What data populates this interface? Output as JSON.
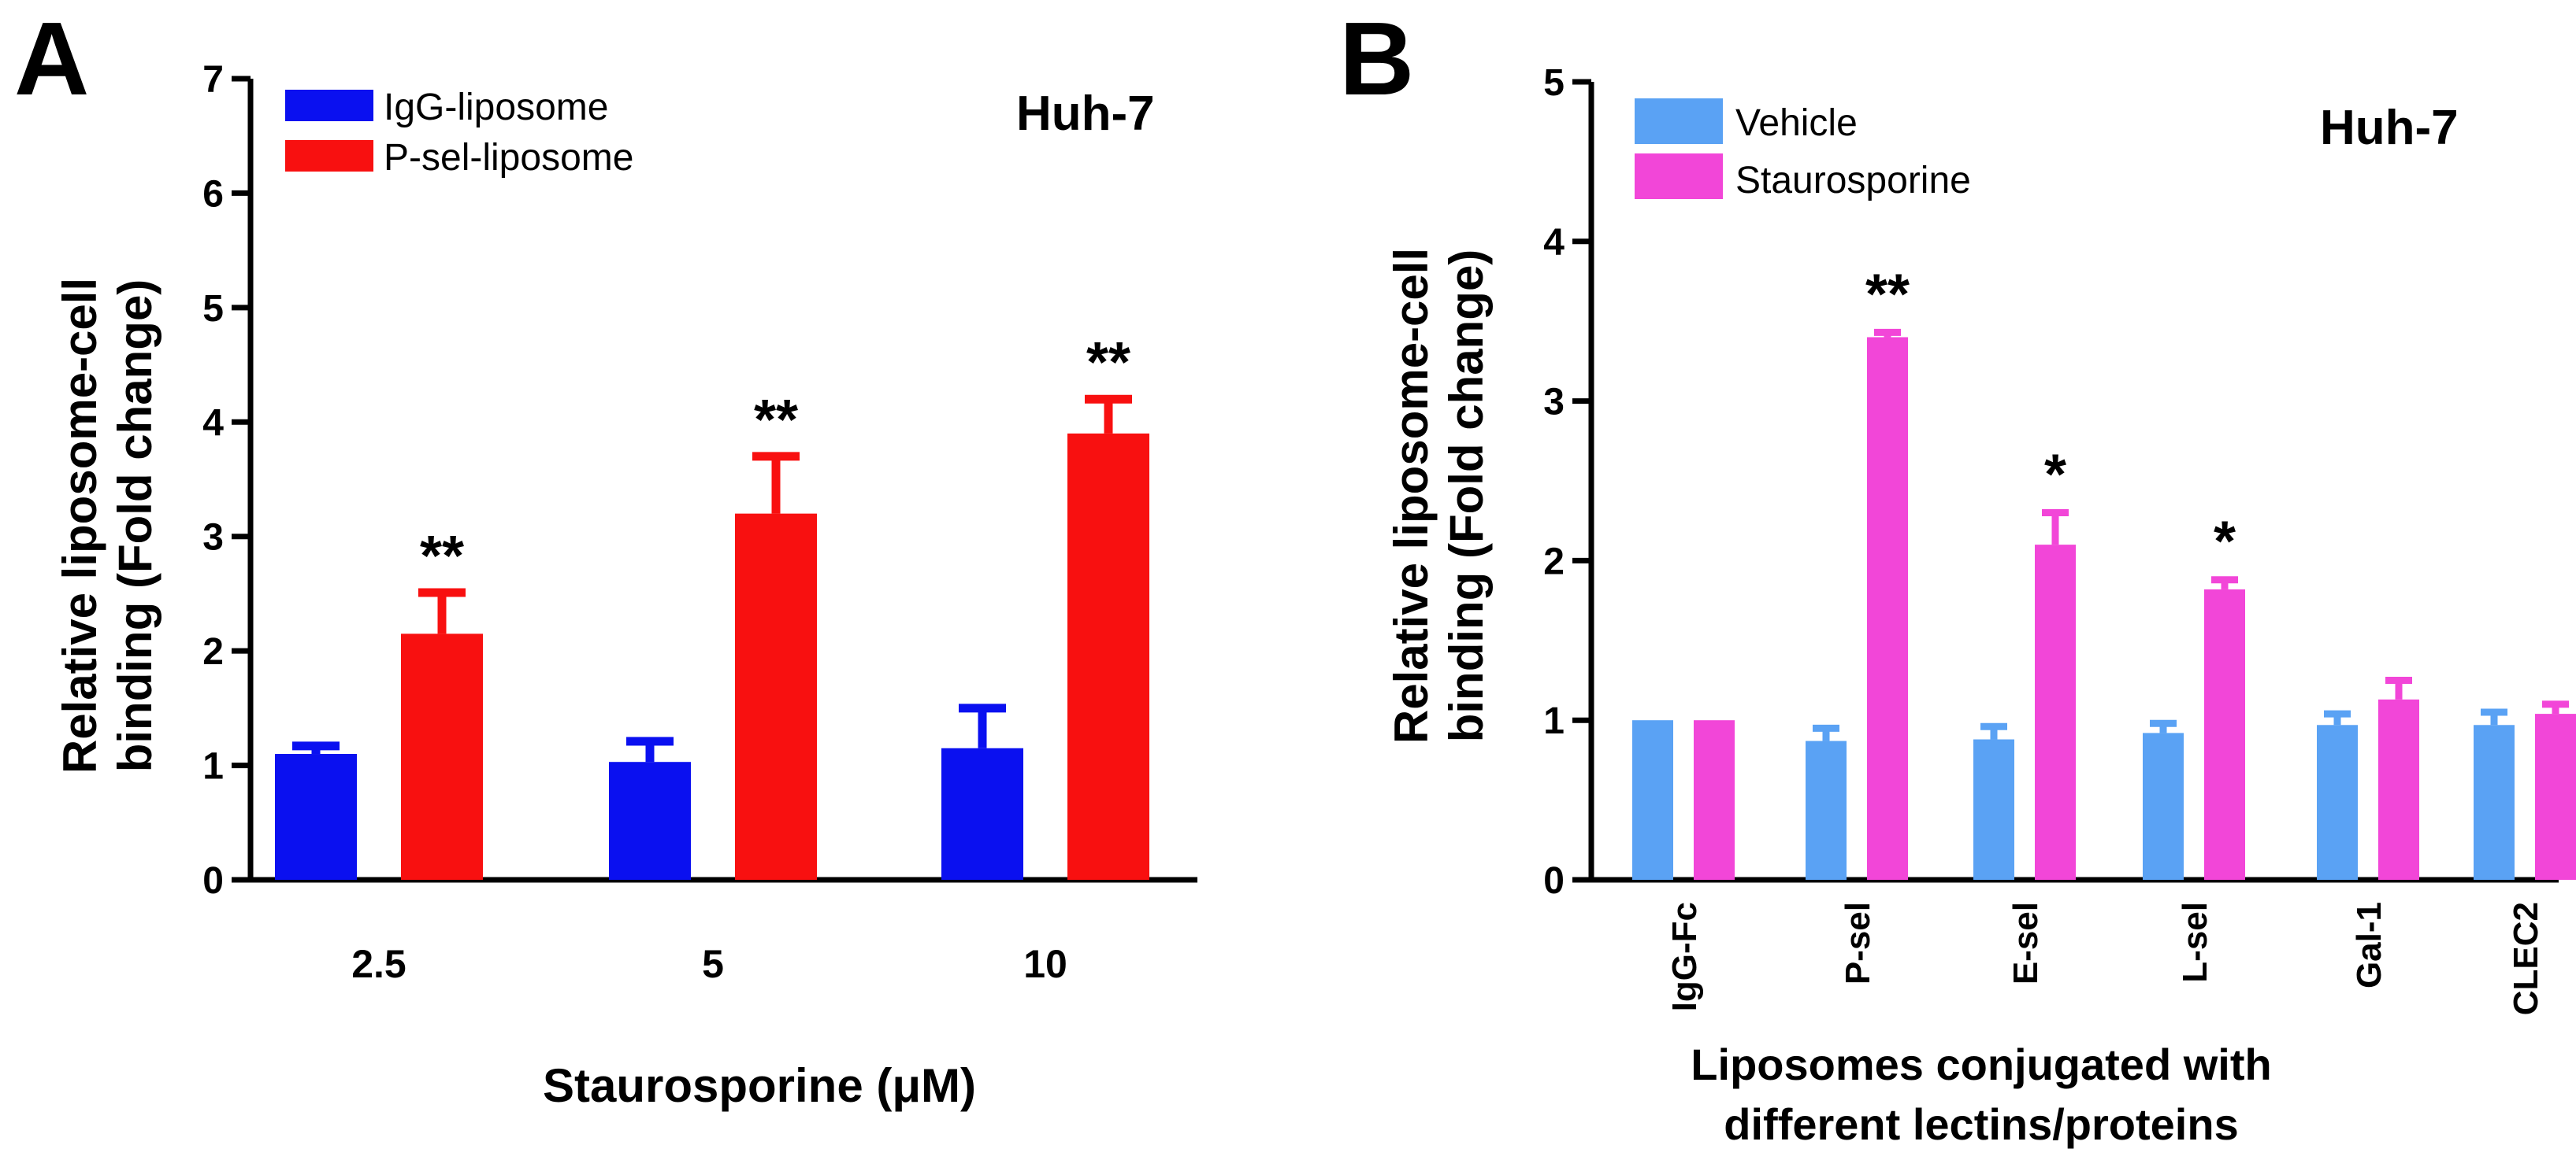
{
  "chart_data": [
    {
      "type": "bar",
      "panel": "A",
      "cell_line": "Huh-7",
      "categories": [
        "2.5",
        "5",
        "10"
      ],
      "series": [
        {
          "name": "IgG-liposome",
          "color": "#0a10f0",
          "values": [
            1.1,
            1.03,
            1.15
          ],
          "errors": [
            0.07,
            0.18,
            0.35
          ]
        },
        {
          "name": "P-sel-liposome",
          "color": "#f81010",
          "values": [
            2.15,
            3.2,
            3.9
          ],
          "errors": [
            0.36,
            0.5,
            0.3
          ]
        }
      ],
      "significance": [
        "**",
        "**",
        "**"
      ],
      "significance_series": "P-sel-liposome",
      "xlabel": "Staurosporine (μM)",
      "ylabel_lines": [
        "Relative liposome-cell",
        "binding (Fold change)"
      ],
      "ylim": [
        0,
        7
      ],
      "yticks": [
        "0",
        "1",
        "2",
        "3",
        "4",
        "5",
        "6",
        "7"
      ],
      "legend_position": "top-left"
    },
    {
      "type": "bar",
      "panel": "B",
      "cell_line": "Huh-7",
      "categories": [
        "IgG-Fc",
        "P-sel",
        "E-sel",
        "L-sel",
        "Gal-1",
        "CLEC2"
      ],
      "series": [
        {
          "name": "Vehicle",
          "color": "#5aa2f4",
          "values": [
            1.0,
            0.87,
            0.88,
            0.92,
            0.97,
            0.97
          ],
          "errors": [
            0.0,
            0.08,
            0.08,
            0.06,
            0.07,
            0.08
          ]
        },
        {
          "name": "Staurosporine",
          "color": "#f246d8",
          "values": [
            1.0,
            3.4,
            2.1,
            1.82,
            1.13,
            1.04
          ],
          "errors": [
            0.0,
            0.03,
            0.2,
            0.06,
            0.12,
            0.06
          ]
        }
      ],
      "significance": [
        "",
        "**",
        "*",
        "*",
        "",
        ""
      ],
      "significance_series": "Staurosporine",
      "xlabel_lines": [
        "Liposomes conjugated with",
        "different lectins/proteins"
      ],
      "ylabel_lines": [
        "Relative liposome-cell",
        "binding (Fold change)"
      ],
      "ylim": [
        0,
        5
      ],
      "yticks": [
        "0",
        "1",
        "2",
        "3",
        "4",
        "5"
      ],
      "legend_position": "top-left"
    }
  ]
}
